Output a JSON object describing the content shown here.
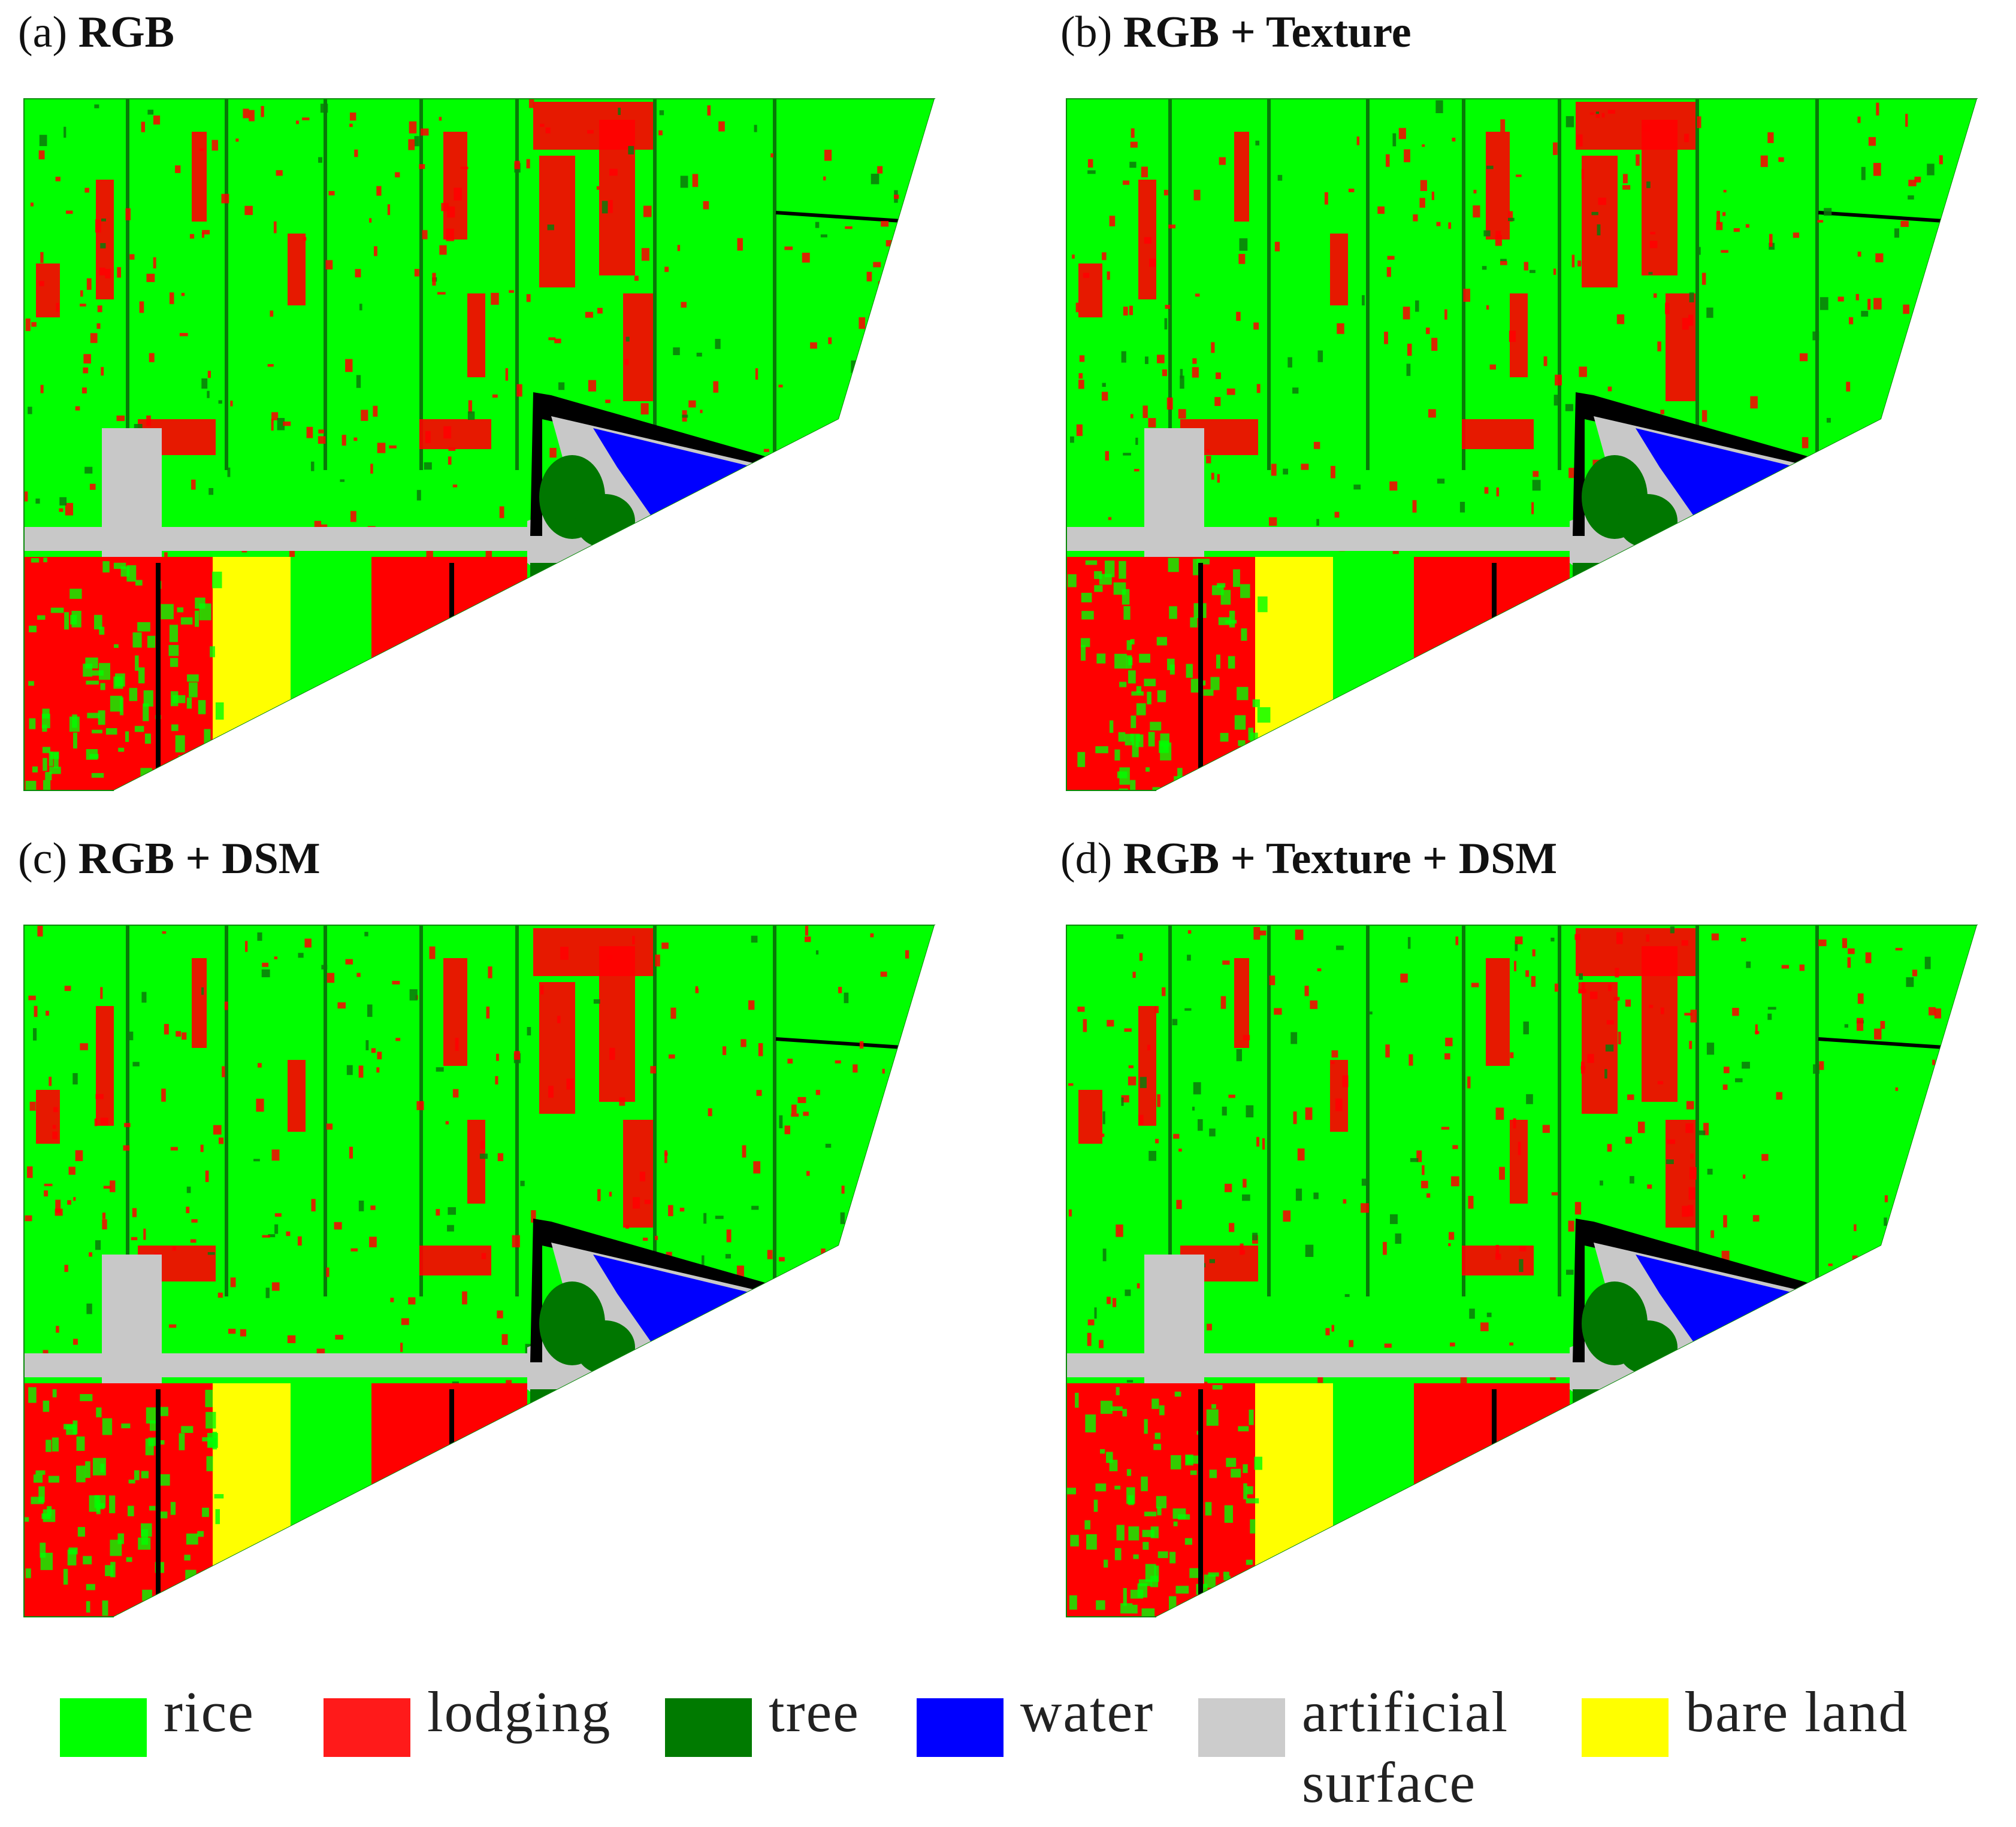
{
  "panels": [
    {
      "label": "(a)",
      "name": "RGB"
    },
    {
      "label": "(b)",
      "name": "RGB + Texture"
    },
    {
      "label": "(c)",
      "name": "RGB + DSM"
    },
    {
      "label": "(d)",
      "name": "RGB + Texture + DSM"
    }
  ],
  "colors": {
    "rice": "#00ff00",
    "lodging": "#ff0000",
    "tree": "#007700",
    "water": "#0000ff",
    "artificial": "#c8c8c8",
    "bare": "#ffff00",
    "black": "#000000"
  },
  "legend": [
    {
      "label": "rice",
      "color": "#00ff00"
    },
    {
      "label": "lodging",
      "color": "#ff1a1a"
    },
    {
      "label": "tree",
      "color": "#007a00"
    },
    {
      "label": "water",
      "color": "#0000ff"
    },
    {
      "label": "artificial surface",
      "color": "#cccccc"
    },
    {
      "label": "bare land",
      "color": "#ffff00"
    }
  ]
}
